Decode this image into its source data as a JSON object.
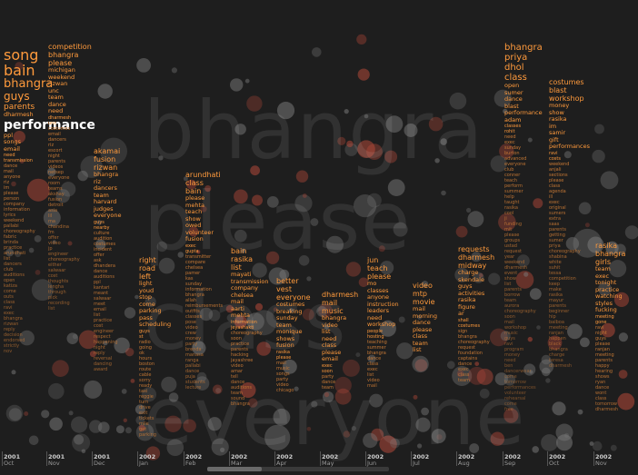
{
  "chart_data": {
    "type": "scatter",
    "title": "",
    "background_words": [
      "bhangra",
      "please",
      "class",
      "everyone"
    ],
    "highlight_term": "performance",
    "periods": [
      {
        "year": "2001",
        "month": "Oct",
        "words": [
          "song",
          "bain",
          "bhangra",
          "guys",
          "parents",
          "dharmesh",
          "performance",
          "ppl",
          "songs",
          "email",
          "need",
          "transmission",
          "dance",
          "mail",
          "anyone",
          "riz",
          "im",
          "please",
          "person",
          "company",
          "information",
          "lyrics",
          "weekend",
          "pallabi",
          "choreography",
          "fabric",
          "brinda",
          "practice",
          "arundhati",
          "list",
          "dancers",
          "club",
          "auditions",
          "open",
          "katiza",
          "come",
          "outs",
          "class",
          "ravi",
          "exec",
          "bhangra",
          "rizwan",
          "reply",
          "decision",
          "endorsed",
          "strictly",
          "nov"
        ]
      },
      {
        "year": "2001",
        "month": "Nov",
        "words": [
          "competition",
          "bhangra",
          "please",
          "michigan",
          "weekend",
          "rizwan",
          "unc",
          "team",
          "dance",
          "need",
          "dharmesh",
          "unc",
          "costumes",
          "email",
          "dancers",
          "riz",
          "escort",
          "night",
          "parents",
          "videos",
          "netsep",
          "everyone",
          "room",
          "teams",
          "akshay",
          "fusion",
          "detroit",
          "asia",
          "lil",
          "ma",
          "chandina",
          "fm",
          "offer",
          "video",
          "jp",
          "engineer",
          "choreography",
          "either",
          "salwaar",
          "cost",
          "thoughts",
          "lengha",
          "through",
          "pick",
          "recording",
          "list"
        ]
      },
      {
        "year": "2001",
        "month": "Dec",
        "words": [
          "akamai",
          "fusion",
          "rizwan",
          "bhangra",
          "riz",
          "dancers",
          "team",
          "harvard",
          "judges",
          "everyone",
          "guys",
          "nearby",
          "culture",
          "audition",
          "costumes",
          "incident",
          "offer",
          "ask",
          "dhandera",
          "dance",
          "auditions",
          "ppl",
          "kantari",
          "meant",
          "salwaar",
          "meet",
          "email",
          "list",
          "practice",
          "cost",
          "engineer",
          "respect",
          "happening",
          "night",
          "reply",
          "reversal",
          "dancing",
          "award"
        ]
      },
      {
        "year": "2002",
        "month": "Jan",
        "words": [
          "right",
          "road",
          "left",
          "light",
          "youd",
          "stop",
          "come",
          "parking",
          "pass",
          "scheduling",
          "guys",
          "st",
          "radio",
          "going",
          "ok",
          "hours",
          "boston",
          "route",
          "cable",
          "sorry",
          "ready",
          "taxi",
          "reggie",
          "turn",
          "drive",
          "exit",
          "tickets",
          "mile",
          "get",
          "parking"
        ]
      },
      {
        "year": "2002",
        "month": "Feb",
        "words": [
          "arundhati",
          "class",
          "bain",
          "please",
          "mehta",
          "teach",
          "show",
          "owed",
          "volunteer",
          "fusion",
          "exec",
          "gupta",
          "transmitter",
          "compare",
          "chelsea",
          "pamer",
          "kas",
          "sunday",
          "information",
          "bhangra",
          "allah",
          "reimbursements",
          "outfits",
          "classes",
          "pose",
          "video",
          "crew",
          "money",
          "party",
          "brenda",
          "manasa",
          "ranga",
          "pallabi",
          "dance",
          "puja",
          "students",
          "lecture"
        ]
      },
      {
        "year": "2002",
        "month": "Mar",
        "words": [
          "bain",
          "rasika",
          "list",
          "mayati",
          "transmission",
          "company",
          "chelsea",
          "mail",
          "aarti",
          "mehta",
          "information",
          "jeyashakti",
          "choreography",
          "soon",
          "practice",
          "parents",
          "hacking",
          "jayashree",
          "video",
          "amar",
          "tell",
          "dance",
          "auditions",
          "team",
          "sound",
          "bhangra"
        ]
      },
      {
        "year": "2002",
        "month": "Apr",
        "words": [
          "better",
          "vest",
          "everyone",
          "costumes",
          "breaking",
          "sunday",
          "team",
          "monique",
          "shows",
          "fusion",
          "rasika",
          "please",
          "mail",
          "music",
          "songs",
          "party",
          "video",
          "chicago"
        ]
      },
      {
        "year": "2002",
        "month": "May",
        "words": [
          "dharmesh",
          "mail",
          "music",
          "bhangra",
          "video",
          "list",
          "need",
          "class",
          "please",
          "email",
          "exec",
          "soon",
          "party",
          "dance",
          "team"
        ]
      },
      {
        "year": "2002",
        "month": "Jun",
        "words": [
          "jun",
          "teach",
          "please",
          "mo",
          "classes",
          "anyone",
          "instruction",
          "leaders",
          "need",
          "workshop",
          "people",
          "hosting",
          "teaching",
          "summer",
          "bhangra",
          "dance",
          "class",
          "exec",
          "list",
          "video",
          "mail"
        ]
      },
      {
        "year": "2002",
        "month": "Jul",
        "words": [
          "video",
          "mtp",
          "movie",
          "mail",
          "morning",
          "dance",
          "please",
          "class",
          "team",
          "list"
        ]
      },
      {
        "year": "2002",
        "month": "Aug",
        "words": [
          "requests",
          "dharmesh",
          "midway",
          "charge",
          "skendale",
          "guys",
          "activities",
          "rasika",
          "figure",
          "ar",
          "shall",
          "costumes",
          "sign",
          "bhangra",
          "choreography",
          "request",
          "foundation",
          "captains",
          "dance",
          "exec",
          "class",
          "team"
        ]
      },
      {
        "year": "2002",
        "month": "Sep",
        "words": [
          "bhangra",
          "priya",
          "dhol",
          "class",
          "open",
          "sumer",
          "dance",
          "blast",
          "performance",
          "adam",
          "classes",
          "rohit",
          "need",
          "exec",
          "sunday",
          "burton",
          "advanced",
          "everyone",
          "club",
          "conner",
          "teach",
          "perform",
          "summer",
          "help",
          "taught",
          "rasika",
          "cool",
          "ji",
          "funding",
          "mit",
          "please",
          "groups",
          "ustad",
          "request",
          "year",
          "weekend",
          "dharmesh",
          "event",
          "show",
          "list",
          "parents",
          "borrow",
          "team",
          "aurora",
          "choreography",
          "soon",
          "mail",
          "workshop",
          "music",
          "guys",
          "ravi",
          "program",
          "money",
          "need",
          "ben",
          "dancerwear",
          "come",
          "tomorrow",
          "performances",
          "volunteer",
          "rehearsal",
          "come",
          "free"
        ]
      },
      {
        "year": "2002",
        "month": "Oct",
        "words": [
          "costumes",
          "blast",
          "workshop",
          "money",
          "show",
          "rasika",
          "im",
          "samir",
          "gift",
          "performances",
          "ravi",
          "costs",
          "weekend",
          "anjali",
          "sections",
          "please",
          "class",
          "agenda",
          "ill",
          "exec",
          "original",
          "sumers",
          "extra",
          "saas",
          "parents",
          "getting",
          "sumer",
          "priya",
          "choreography",
          "shabina",
          "white",
          "suhit",
          "tessa",
          "competition",
          "keep",
          "make",
          "rasika",
          "mayur",
          "parents",
          "beginner",
          "hip",
          "balboa",
          "meeting",
          "ranjan",
          "happen",
          "black",
          "bhangra",
          "charge",
          "teresa",
          "dharmesh"
        ]
      },
      {
        "year": "2002",
        "month": "Nov",
        "words": [
          "rasika",
          "bhangra",
          "girls",
          "team",
          "exec",
          "tonight",
          "practice",
          "watching",
          "styles",
          "fucking",
          "meeting",
          "gone",
          "ravi",
          "night",
          "guys",
          "please",
          "ranjan",
          "meeting",
          "parents",
          "happy",
          "hearing",
          "shows",
          "ryan",
          "dance",
          "wont",
          "class",
          "tomorrow",
          "dharmesh"
        ]
      }
    ],
    "axis": {
      "ticks": [
        {
          "year": "2001",
          "month": "Oct"
        },
        {
          "year": "2001",
          "month": "Nov"
        },
        {
          "year": "2001",
          "month": "Dec"
        },
        {
          "year": "2002",
          "month": "Jan"
        },
        {
          "year": "2002",
          "month": "Feb"
        },
        {
          "year": "2002",
          "month": "Mar"
        },
        {
          "year": "2002",
          "month": "Apr"
        },
        {
          "year": "2002",
          "month": "May"
        },
        {
          "year": "2002",
          "month": "Jun"
        },
        {
          "year": "2002",
          "month": "Jul"
        },
        {
          "year": "2002",
          "month": "Aug"
        },
        {
          "year": "2002",
          "month": "Sep"
        },
        {
          "year": "2002",
          "month": "Oct"
        },
        {
          "year": "2002",
          "month": "Nov"
        }
      ]
    },
    "colors": {
      "background": "#1e1e1e",
      "accent": "#ff9a3c",
      "accent_dim": "#c97a35",
      "highlight": "#ffffff",
      "bubble_gray": "#7a7a7a",
      "bubble_red": "#b84a3a"
    }
  }
}
